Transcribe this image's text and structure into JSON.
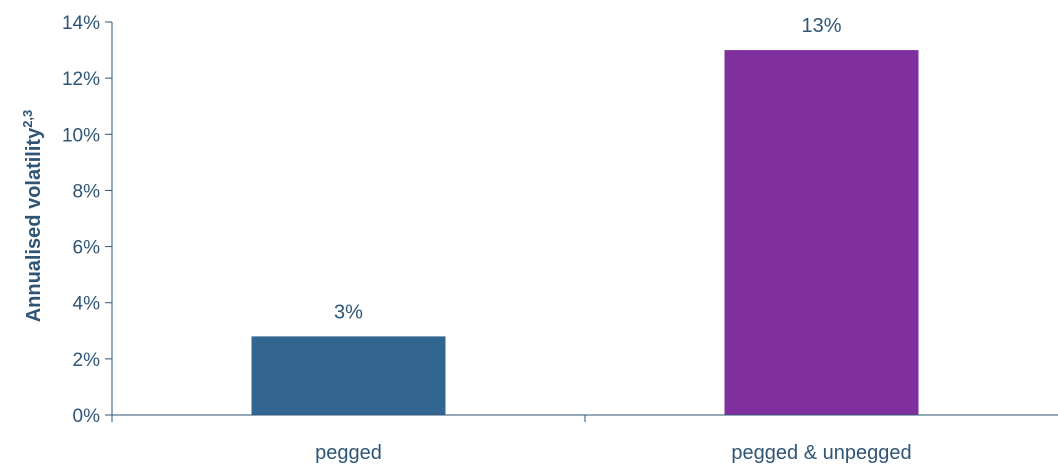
{
  "chart_data": {
    "type": "bar",
    "title": "",
    "xlabel": "",
    "ylabel": "Annualised volatility",
    "ylabel_superscript": "2,3",
    "categories": [
      "pegged",
      "pegged & unpegged"
    ],
    "values": [
      0.028,
      0.13
    ],
    "value_labels": [
      "3%",
      "13%"
    ],
    "ylim": [
      0,
      0.14
    ],
    "yticks": [
      0,
      0.02,
      0.04,
      0.06,
      0.08,
      0.1,
      0.12,
      0.14
    ],
    "ytick_labels": [
      "0%",
      "2%",
      "4%",
      "6%",
      "8%",
      "10%",
      "12%",
      "14%"
    ],
    "bar_colors": [
      "#336591",
      "#7f2f9e"
    ],
    "axis_color": "#2f5576",
    "grid": false,
    "legend": "none"
  }
}
